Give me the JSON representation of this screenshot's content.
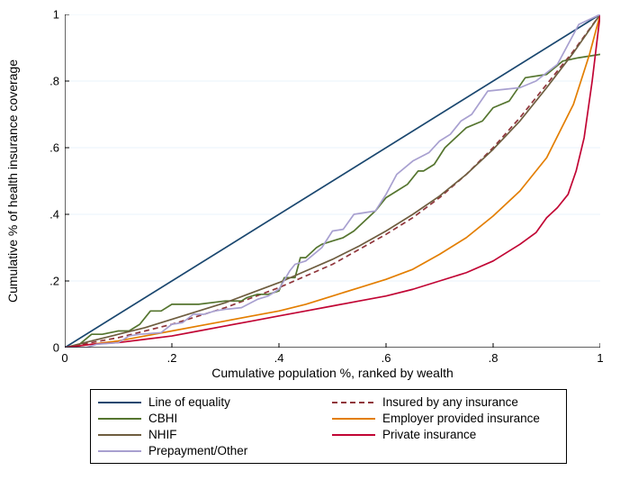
{
  "chart": {
    "type": "line",
    "background_color": "#ffffff",
    "grid_color": "#eaf3fb",
    "axis_color": "#000000",
    "tick_length": 5,
    "xlabel": "Cumulative population %, ranked by wealth",
    "ylabel": "Cumulative % of health insurance coverage",
    "label_fontsize": 14,
    "tick_fontsize": 13,
    "xlim": [
      0,
      1
    ],
    "ylim": [
      0,
      1
    ],
    "xticks": [
      0,
      0.2,
      0.4,
      0.6,
      0.8,
      1
    ],
    "yticks": [
      0,
      0.2,
      0.4,
      0.6,
      0.8,
      1
    ],
    "xtick_labels": [
      "0",
      ".2",
      ".4",
      ".6",
      ".8",
      "1"
    ],
    "ytick_labels": [
      "0",
      ".2",
      ".4",
      ".6",
      ".8",
      "1"
    ],
    "line_width": 1.7,
    "series": [
      {
        "id": "equality",
        "label": "Line of equality",
        "color": "#1a476f",
        "dash": null,
        "x": [
          0,
          1
        ],
        "y": [
          0,
          1
        ]
      },
      {
        "id": "any_insurance",
        "label": "Insured by any insurance",
        "color": "#90353b",
        "dash": "6,4",
        "x": [
          0,
          0.05,
          0.1,
          0.15,
          0.2,
          0.25,
          0.3,
          0.35,
          0.4,
          0.45,
          0.5,
          0.55,
          0.6,
          0.65,
          0.7,
          0.75,
          0.8,
          0.85,
          0.9,
          0.95,
          1.0
        ],
        "y": [
          0,
          0.015,
          0.03,
          0.05,
          0.07,
          0.095,
          0.12,
          0.15,
          0.18,
          0.215,
          0.25,
          0.295,
          0.34,
          0.39,
          0.45,
          0.52,
          0.6,
          0.69,
          0.79,
          0.89,
          1.0
        ]
      },
      {
        "id": "cbhi",
        "label": "CBHI",
        "color": "#55752f",
        "dash": null,
        "x": [
          0,
          0.02,
          0.05,
          0.07,
          0.1,
          0.12,
          0.14,
          0.16,
          0.18,
          0.2,
          0.22,
          0.25,
          0.3,
          0.33,
          0.34,
          0.36,
          0.38,
          0.4,
          0.41,
          0.43,
          0.44,
          0.45,
          0.47,
          0.48,
          0.5,
          0.52,
          0.54,
          0.56,
          0.58,
          0.6,
          0.62,
          0.64,
          0.66,
          0.67,
          0.69,
          0.71,
          0.73,
          0.75,
          0.78,
          0.8,
          0.83,
          0.86,
          0.9,
          0.93,
          0.96,
          1.0
        ],
        "y": [
          0,
          0.0,
          0.04,
          0.04,
          0.05,
          0.05,
          0.07,
          0.11,
          0.11,
          0.13,
          0.13,
          0.13,
          0.14,
          0.14,
          0.15,
          0.16,
          0.16,
          0.17,
          0.21,
          0.21,
          0.27,
          0.27,
          0.3,
          0.31,
          0.32,
          0.33,
          0.35,
          0.38,
          0.41,
          0.45,
          0.47,
          0.49,
          0.53,
          0.53,
          0.55,
          0.6,
          0.63,
          0.66,
          0.68,
          0.72,
          0.74,
          0.81,
          0.82,
          0.86,
          0.87,
          0.88
        ]
      },
      {
        "id": "employer",
        "label": "Employer provided insurance",
        "color": "#e37e00",
        "dash": null,
        "x": [
          0,
          0.05,
          0.1,
          0.15,
          0.2,
          0.25,
          0.3,
          0.35,
          0.4,
          0.45,
          0.5,
          0.55,
          0.6,
          0.65,
          0.7,
          0.75,
          0.8,
          0.85,
          0.9,
          0.95,
          0.98,
          1.0
        ],
        "y": [
          0,
          0.01,
          0.02,
          0.035,
          0.05,
          0.065,
          0.08,
          0.095,
          0.11,
          0.13,
          0.155,
          0.18,
          0.205,
          0.235,
          0.28,
          0.33,
          0.395,
          0.47,
          0.57,
          0.73,
          0.88,
          1.0
        ]
      },
      {
        "id": "nhif",
        "label": "NHIF",
        "color": "#6e5d3f",
        "dash": null,
        "x": [
          0,
          0.05,
          0.1,
          0.15,
          0.2,
          0.25,
          0.3,
          0.35,
          0.4,
          0.45,
          0.5,
          0.55,
          0.6,
          0.65,
          0.7,
          0.75,
          0.8,
          0.85,
          0.9,
          0.95,
          1.0
        ],
        "y": [
          0,
          0.02,
          0.04,
          0.06,
          0.085,
          0.11,
          0.135,
          0.165,
          0.195,
          0.23,
          0.265,
          0.305,
          0.35,
          0.4,
          0.455,
          0.52,
          0.595,
          0.68,
          0.78,
          0.885,
          1.0
        ]
      },
      {
        "id": "private",
        "label": "Private insurance",
        "color": "#c10534",
        "dash": null,
        "x": [
          0,
          0.05,
          0.1,
          0.15,
          0.2,
          0.25,
          0.3,
          0.35,
          0.4,
          0.45,
          0.5,
          0.55,
          0.6,
          0.65,
          0.7,
          0.75,
          0.8,
          0.83,
          0.85,
          0.88,
          0.9,
          0.92,
          0.94,
          0.955,
          0.97,
          0.985,
          1.0
        ],
        "y": [
          0,
          0.01,
          0.015,
          0.025,
          0.035,
          0.05,
          0.065,
          0.08,
          0.095,
          0.11,
          0.125,
          0.14,
          0.155,
          0.175,
          0.2,
          0.225,
          0.26,
          0.29,
          0.31,
          0.345,
          0.39,
          0.42,
          0.46,
          0.53,
          0.63,
          0.8,
          1.0
        ]
      },
      {
        "id": "prepayment",
        "label": "Prepayment/Other",
        "color": "#a8a0d0",
        "dash": null,
        "x": [
          0,
          0.02,
          0.04,
          0.06,
          0.1,
          0.12,
          0.14,
          0.18,
          0.2,
          0.22,
          0.24,
          0.26,
          0.28,
          0.3,
          0.33,
          0.36,
          0.38,
          0.4,
          0.42,
          0.43,
          0.45,
          0.48,
          0.5,
          0.52,
          0.54,
          0.56,
          0.58,
          0.6,
          0.62,
          0.65,
          0.68,
          0.7,
          0.72,
          0.74,
          0.76,
          0.79,
          0.82,
          0.85,
          0.88,
          0.92,
          0.96,
          1.0
        ],
        "y": [
          0,
          0.0,
          0.0,
          0.01,
          0.015,
          0.035,
          0.04,
          0.045,
          0.07,
          0.075,
          0.1,
          0.1,
          0.11,
          0.115,
          0.12,
          0.145,
          0.155,
          0.175,
          0.23,
          0.25,
          0.26,
          0.3,
          0.35,
          0.355,
          0.4,
          0.405,
          0.41,
          0.46,
          0.52,
          0.56,
          0.585,
          0.62,
          0.64,
          0.68,
          0.7,
          0.77,
          0.775,
          0.78,
          0.8,
          0.85,
          0.97,
          1.0
        ]
      }
    ],
    "legend": {
      "border_color": "#000000",
      "columns": 2,
      "fontsize": 13.5,
      "order": [
        "equality",
        "any_insurance",
        "cbhi",
        "employer",
        "nhif",
        "private",
        "prepayment"
      ]
    }
  }
}
